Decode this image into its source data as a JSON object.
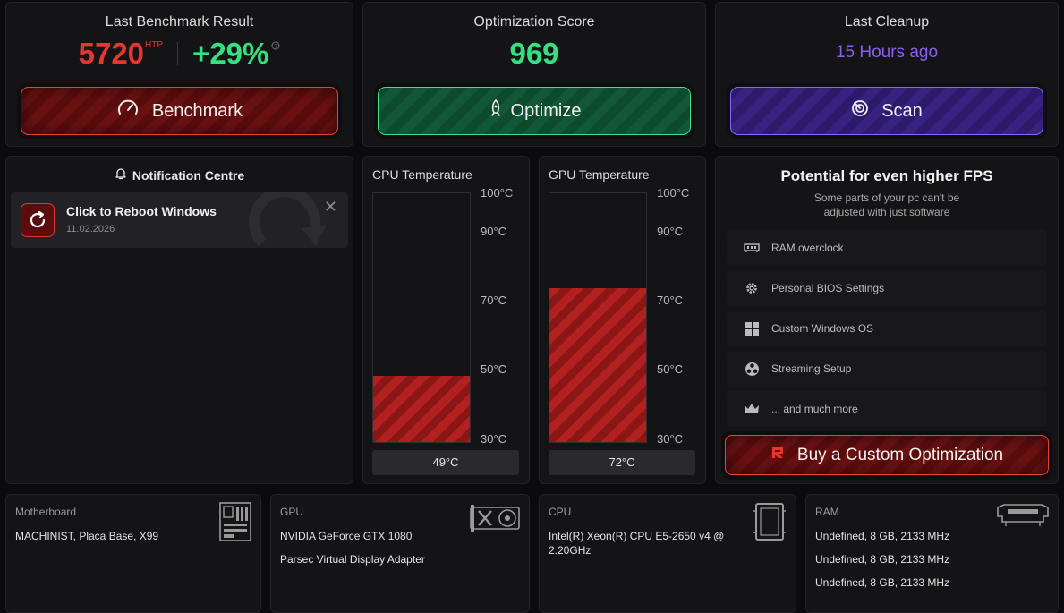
{
  "benchmark": {
    "title": "Last Benchmark Result",
    "score": "5720",
    "score_unit": "HTP",
    "delta": "+29%",
    "button_label": "Benchmark"
  },
  "optimization": {
    "title": "Optimization Score",
    "score": "969",
    "button_label": "Optimize"
  },
  "cleanup": {
    "title": "Last Cleanup",
    "value": "15 Hours ago",
    "button_label": "Scan"
  },
  "notifications": {
    "title": "Notification Centre",
    "items": [
      {
        "text": "Click to Reboot Windows",
        "date": "11.02.2026"
      }
    ]
  },
  "cpu_temp": {
    "title": "CPU Temperature",
    "ticks": [
      "100°C",
      "90°C",
      "70°C",
      "50°C",
      "30°C"
    ],
    "value": "49°C",
    "level_celsius": 49
  },
  "gpu_temp": {
    "title": "GPU Temperature",
    "ticks": [
      "100°C",
      "90°C",
      "70°C",
      "50°C",
      "30°C"
    ],
    "value": "72°C",
    "level_celsius": 72
  },
  "fps_panel": {
    "title": "Potential for even higher FPS",
    "subtitle_line1": "Some parts of your pc can't be",
    "subtitle_line2": "adjusted with just software",
    "items": [
      {
        "label": "RAM overclock",
        "icon": "ram-icon"
      },
      {
        "label": "Personal BIOS Settings",
        "icon": "gear-icon"
      },
      {
        "label": "Custom Windows OS",
        "icon": "windows-icon"
      },
      {
        "label": "Streaming Setup",
        "icon": "obs-icon"
      },
      {
        "label": "... and much more",
        "icon": "crown-icon"
      }
    ],
    "button_label": "Buy a Custom Optimization"
  },
  "hardware": {
    "motherboard": {
      "label": "Motherboard",
      "lines": [
        "MACHINIST, Placa Base, X99"
      ]
    },
    "gpu": {
      "label": "GPU",
      "lines": [
        "NVIDIA GeForce GTX 1080",
        "Parsec Virtual Display Adapter"
      ]
    },
    "cpu": {
      "label": "CPU",
      "lines": [
        "Intel(R) Xeon(R) CPU E5-2650 v4 @",
        "2.20GHz"
      ]
    },
    "ram": {
      "label": "RAM",
      "lines": [
        "Undefined, 8 GB, 2133 MHz",
        "Undefined, 8 GB, 2133 MHz",
        "Undefined, 8 GB, 2133 MHz"
      ]
    }
  },
  "colors": {
    "red": "#e8352d",
    "green": "#35e07f",
    "purple": "#8b5cf6"
  }
}
